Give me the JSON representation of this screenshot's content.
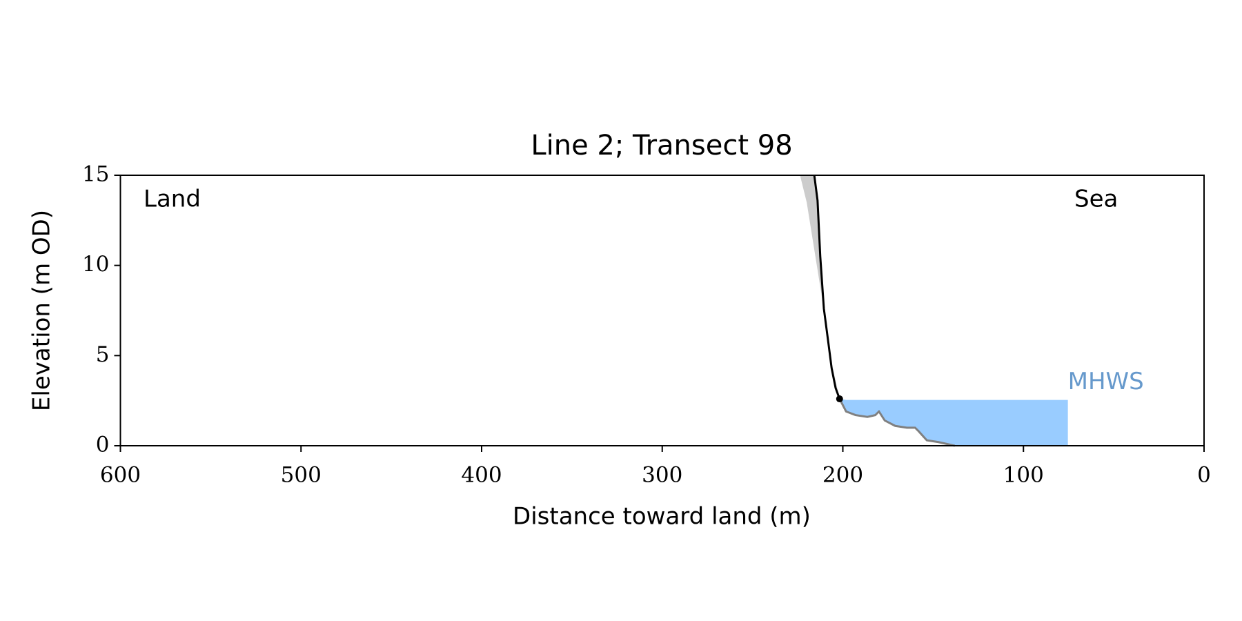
{
  "chart_data": {
    "type": "line",
    "title": "Line 2; Transect 98",
    "xlabel": "Distance toward land (m)",
    "ylabel": "Elevation (m OD)",
    "xlim": [
      600,
      0
    ],
    "ylim": [
      0,
      15
    ],
    "xticks": [
      600,
      500,
      400,
      300,
      200,
      100,
      0
    ],
    "yticks": [
      0,
      5,
      10,
      15
    ],
    "annotations": [
      "Land",
      "Sea"
    ],
    "series": [
      {
        "color": "#000000",
        "x": [
          215.8,
          214,
          212.5,
          210.5,
          208,
          206.2,
          204,
          201.8
        ],
        "values": [
          15,
          13.6,
          10.5,
          7.6,
          5.7,
          4.3,
          3.2,
          2.6
        ]
      },
      {
        "color": "#cccccc",
        "x": [
          223.7,
          220,
          212,
          206,
          201.8
        ],
        "values": [
          15,
          13.5,
          8.5,
          4.5,
          2.6
        ]
      },
      {
        "color": "#808080",
        "x": [
          201.8,
          198.2,
          193,
          186.4,
          182,
          180,
          176.8,
          171,
          164.5,
          160,
          158,
          153.5,
          147,
          142.5,
          138
        ],
        "values": [
          2.6,
          1.9,
          1.7,
          1.6,
          1.7,
          1.9,
          1.4,
          1.1,
          1.0,
          1.0,
          0.8,
          0.3,
          0.2,
          0.1,
          0
        ]
      }
    ],
    "mhws": {
      "label": "MHWS",
      "level": 2.54,
      "x": [
        198.2,
        75.4
      ],
      "color": "#99ccff",
      "label_color": "#6699cc"
    }
  }
}
